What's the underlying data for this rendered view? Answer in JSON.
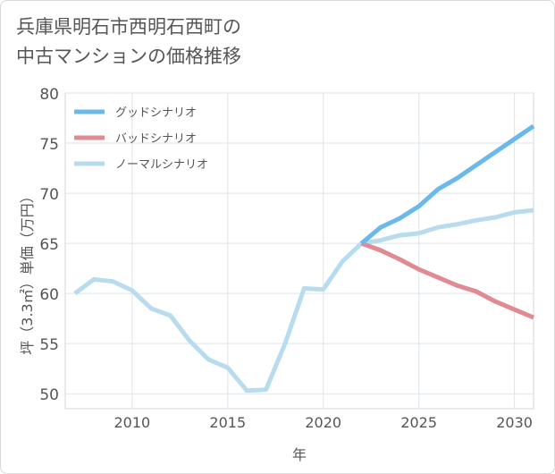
{
  "title_line1": "兵庫県明石市西明石西町の",
  "title_line2": "中古マンションの価格推移",
  "chart_data": {
    "type": "line",
    "xlabel": "年",
    "ylabel": "坪（3.3㎡）単価（万円）",
    "xlim": [
      2006.5,
      2031
    ],
    "ylim": [
      48.5,
      80
    ],
    "x_ticks": [
      2010,
      2015,
      2020,
      2025,
      2030
    ],
    "y_ticks": [
      50,
      55,
      60,
      65,
      70,
      75,
      80
    ],
    "grid": true,
    "legend_position": "top-left",
    "series": [
      {
        "name": "グッドシナリオ",
        "color": "#6bb9ea",
        "x": [
          2022,
          2023,
          2024,
          2025,
          2026,
          2027,
          2028,
          2029,
          2030,
          2031
        ],
        "values": [
          65.0,
          66.6,
          67.5,
          68.7,
          70.4,
          71.5,
          72.8,
          74.1,
          75.4,
          76.7
        ]
      },
      {
        "name": "バッドシナリオ",
        "color": "#e08a92",
        "x": [
          2022,
          2023,
          2024,
          2025,
          2026,
          2027,
          2028,
          2029,
          2030,
          2031
        ],
        "values": [
          65.0,
          64.3,
          63.4,
          62.4,
          61.6,
          60.8,
          60.2,
          59.2,
          58.4,
          57.6
        ]
      },
      {
        "name": "ノーマルシナリオ",
        "color": "#b8dcee",
        "x": [
          2007,
          2008,
          2009,
          2010,
          2011,
          2012,
          2013,
          2014,
          2015,
          2016,
          2017,
          2018,
          2019,
          2020,
          2021,
          2022,
          2023,
          2024,
          2025,
          2026,
          2027,
          2028,
          2029,
          2030,
          2031
        ],
        "values": [
          60.0,
          61.4,
          61.2,
          60.3,
          58.5,
          57.8,
          55.3,
          53.4,
          52.6,
          50.3,
          50.4,
          55.0,
          60.5,
          60.4,
          63.2,
          65.0,
          65.3,
          65.8,
          66.0,
          66.6,
          66.9,
          67.3,
          67.6,
          68.1,
          68.3
        ]
      }
    ]
  }
}
